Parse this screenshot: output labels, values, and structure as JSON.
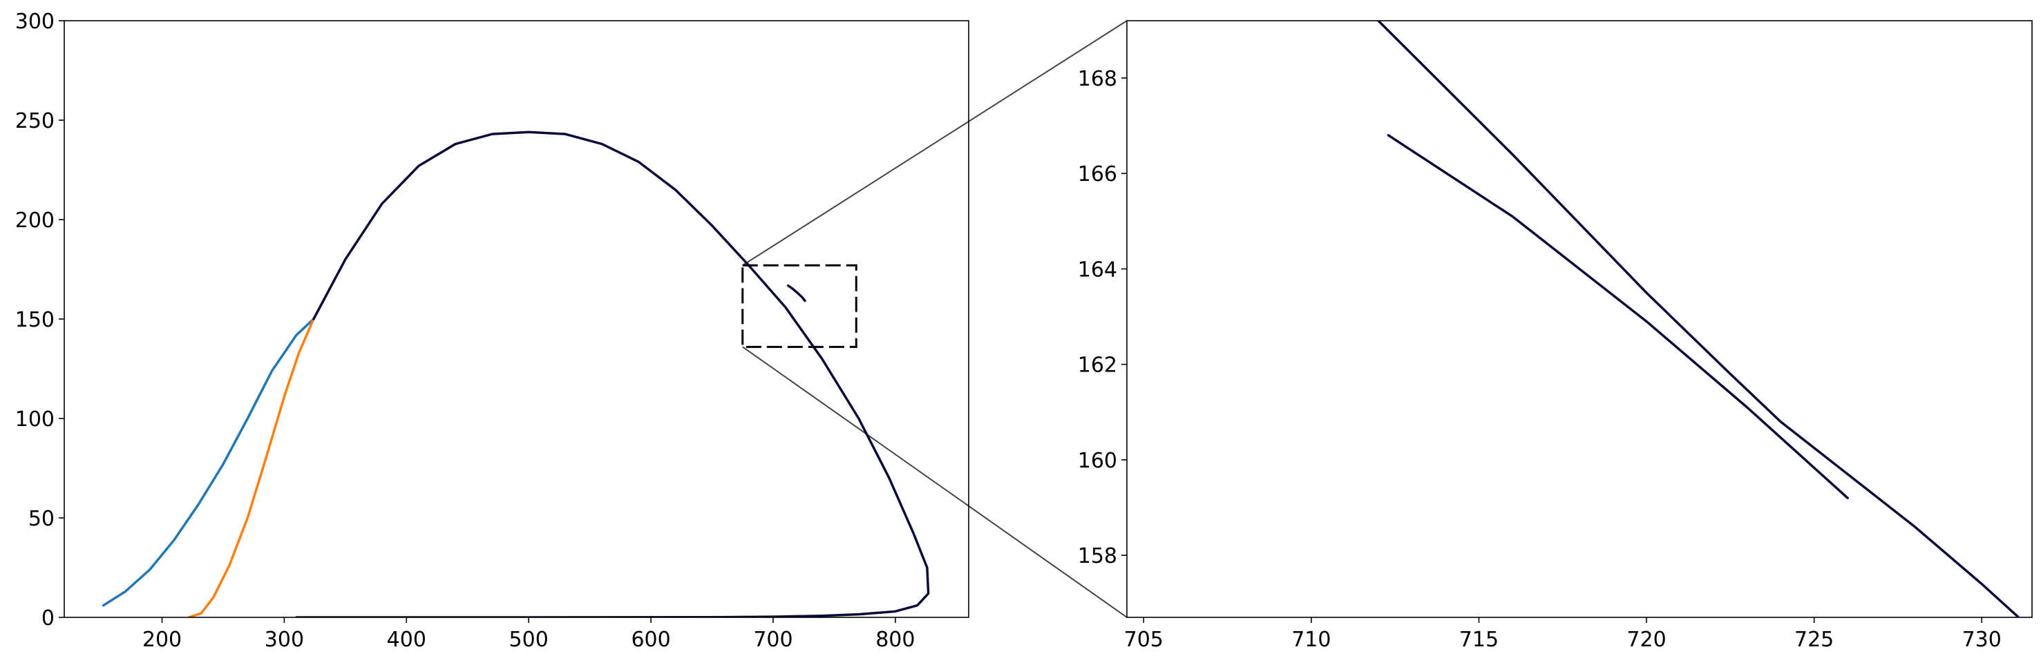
{
  "chart_data": [
    {
      "type": "line",
      "panel": "main",
      "title": "",
      "xlabel": "",
      "ylabel": "",
      "xlim": [
        120,
        860
      ],
      "ylim": [
        0,
        300
      ],
      "xticks": [
        200,
        300,
        400,
        500,
        600,
        700,
        800
      ],
      "yticks": [
        0,
        50,
        100,
        150,
        200,
        250,
        300
      ],
      "grid": false,
      "series": [
        {
          "color": "#1f77b4",
          "points": [
            [
              152,
              6
            ],
            [
              170,
              13
            ],
            [
              190,
              24
            ],
            [
              210,
              39
            ],
            [
              230,
              57
            ],
            [
              250,
              77
            ],
            [
              270,
              100
            ],
            [
              290,
              124
            ],
            [
              310,
              142
            ],
            [
              324,
              150
            ]
          ]
        },
        {
          "color": "#ff7f0e",
          "points": [
            [
              222,
              0
            ],
            [
              232,
              2
            ],
            [
              242,
              10
            ],
            [
              255,
              26
            ],
            [
              270,
              50
            ],
            [
              285,
              80
            ],
            [
              300,
              111
            ],
            [
              312,
              133
            ],
            [
              324,
              150
            ]
          ]
        },
        {
          "color": "#0a0a3a",
          "points": [
            [
              324,
              150
            ],
            [
              350,
              180
            ],
            [
              380,
              208
            ],
            [
              410,
              227
            ],
            [
              440,
              238
            ],
            [
              470,
              243
            ],
            [
              500,
              244
            ],
            [
              530,
              243
            ],
            [
              560,
              238
            ],
            [
              590,
              229
            ],
            [
              620,
              215
            ],
            [
              650,
              197
            ],
            [
              680,
              177
            ],
            [
              710,
              156
            ],
            [
              740,
              130
            ],
            [
              770,
              100
            ],
            [
              795,
              70
            ],
            [
              815,
              42
            ],
            [
              826,
              25
            ],
            [
              827,
              12
            ],
            [
              818,
              6
            ],
            [
              800,
              3
            ],
            [
              770,
              1.5
            ],
            [
              740,
              0.8
            ],
            [
              700,
              0.3
            ],
            [
              650,
              0.1
            ],
            [
              500,
              0
            ],
            [
              310,
              0
            ]
          ]
        },
        {
          "color": "#0a0a3a",
          "points": [
            [
              712.3,
              166.8
            ],
            [
              716,
              165.2
            ],
            [
              720,
              163.1
            ],
            [
              724,
              160.8
            ],
            [
              726,
              159.2
            ]
          ]
        }
      ],
      "zoom_box": {
        "x": [
          675,
          768
        ],
        "y": [
          136,
          177
        ]
      }
    },
    {
      "type": "line",
      "panel": "inset",
      "title": "",
      "xlabel": "",
      "ylabel": "",
      "xlim": [
        704.5,
        731.5
      ],
      "ylim": [
        156.7,
        169.2
      ],
      "xticks": [
        705,
        710,
        715,
        720,
        725,
        730
      ],
      "yticks": [
        158,
        160,
        162,
        164,
        166,
        168
      ],
      "grid": false,
      "series": [
        {
          "color": "#0a0a3a",
          "points": [
            [
              712,
              169.2
            ],
            [
              716,
              166.4
            ],
            [
              720,
              163.5
            ],
            [
              722.5,
              161.8
            ],
            [
              724,
              160.8
            ],
            [
              726,
              159.7
            ],
            [
              728,
              158.6
            ],
            [
              730,
              157.4
            ],
            [
              731.1,
              156.7
            ]
          ]
        },
        {
          "color": "#0a0a3a",
          "points": [
            [
              712.3,
              166.8
            ],
            [
              716,
              165.1
            ],
            [
              720,
              162.9
            ],
            [
              723,
              161.1
            ],
            [
              726,
              159.2
            ]
          ]
        }
      ]
    }
  ]
}
